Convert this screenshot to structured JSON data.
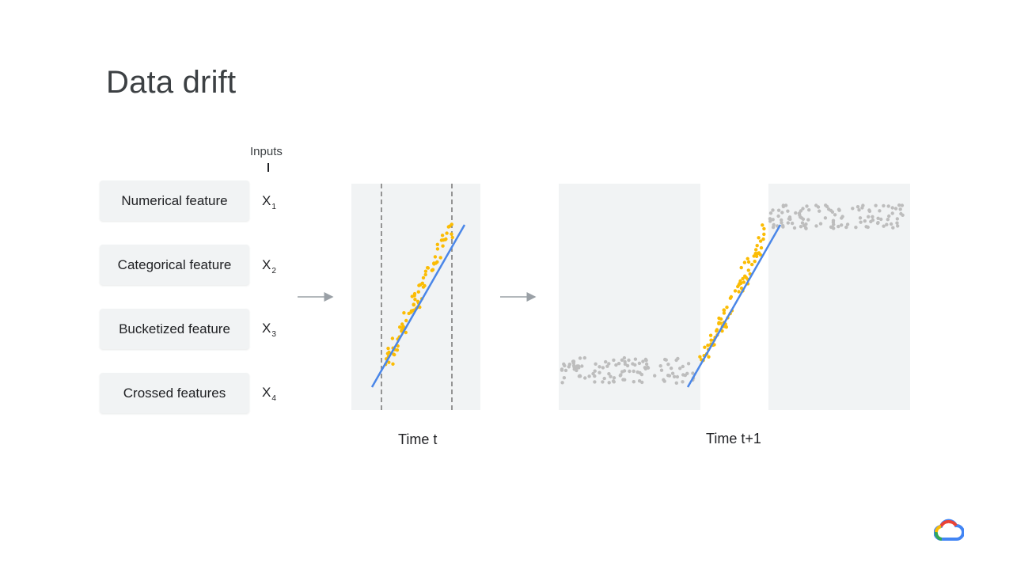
{
  "slide": {
    "title": "Data drift"
  },
  "inputs": {
    "label": "Inputs",
    "features": [
      {
        "name": "Numerical feature",
        "var": "X",
        "sub": "1"
      },
      {
        "name": "Categorical feature",
        "var": "X",
        "sub": "2"
      },
      {
        "name": "Bucketized feature",
        "var": "X",
        "sub": "3"
      },
      {
        "name": "Crossed features",
        "var": "X",
        "sub": "4"
      }
    ]
  },
  "captions": {
    "time_t": "Time t",
    "time_t1": "Time t+1"
  },
  "colors": {
    "panel_bg": "#f1f3f4",
    "points_train": "#fbbc04",
    "points_drift": "#bdbdbd",
    "fit_line": "#4a86e8",
    "arrow": "#9aa0a6",
    "dashed": "#757575"
  },
  "logo": {
    "icon": "google-cloud-logo-icon"
  }
}
